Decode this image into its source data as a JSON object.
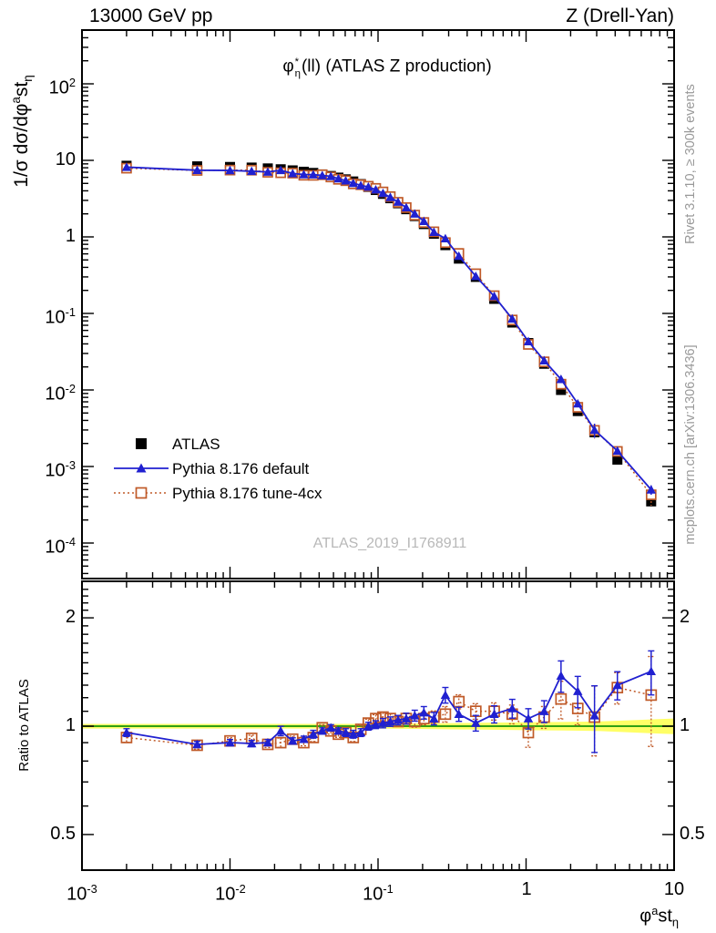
{
  "header": {
    "left": "13000 GeV pp",
    "right": "Z (Drell-Yan)"
  },
  "panel_title": {
    "phi": "φ",
    "sup": "*",
    "sub": "η",
    "rest": "(ll) (ATLAS Z production)"
  },
  "credits": {
    "right_top": "Rivet 3.1.10, ≥ 300k events",
    "right_bottom": "mcplots.cern.ch [arXiv:1306.3436]",
    "watermark": "ATLAS_2019_I1768911"
  },
  "legend": [
    {
      "label": "ATLAS",
      "marker": "black-filled-square"
    },
    {
      "label": "Pythia 8.176 default",
      "marker": "blue-triangle-solid-line"
    },
    {
      "label": "Pythia 8.176 tune-4cx",
      "marker": "orange-open-square-dotted-line"
    }
  ],
  "axes": {
    "ylabel_main": {
      "prefix": "1/σ dσ/dφ",
      "sup": "a",
      "mid": "st",
      "sub": "η"
    },
    "ylabel_ratio": "Ratio to ATLAS",
    "xlabel": {
      "prefix": "φ",
      "sup": "a",
      "mid": "st",
      "sub": "η"
    },
    "x_ticks": [
      {
        "v": 0.001,
        "b": "10",
        "e": "-3"
      },
      {
        "v": 0.01,
        "b": "10",
        "e": "-2"
      },
      {
        "v": 0.1,
        "b": "10",
        "e": "-1"
      },
      {
        "v": 1,
        "b": "1",
        "e": ""
      },
      {
        "v": 10,
        "b": "10",
        "e": ""
      }
    ],
    "y_ticks_main": [
      {
        "v": 100,
        "b": "10",
        "e": "2"
      },
      {
        "v": 10,
        "b": "10",
        "e": ""
      },
      {
        "v": 1,
        "b": "1",
        "e": ""
      },
      {
        "v": 0.1,
        "b": "10",
        "e": "-1"
      },
      {
        "v": 0.01,
        "b": "10",
        "e": "-2"
      },
      {
        "v": 0.001,
        "b": "10",
        "e": "-3"
      },
      {
        "v": 0.0001,
        "b": "10",
        "e": "-4"
      }
    ],
    "y_ticks_ratio": [
      {
        "v": 2,
        "label": "2"
      },
      {
        "v": 1,
        "label": "1"
      },
      {
        "v": 0.5,
        "label": "0.5"
      }
    ]
  },
  "colors": {
    "data": "#000000",
    "pythia_default": "#2020d0",
    "pythia_4cx": "#c05a28",
    "band_yellow": "#ffff55",
    "band_green": "#00b300",
    "credits_gray": "#999999",
    "watermark_gray": "#b8b8b8"
  },
  "chart_data": {
    "type": "line",
    "title": "φ*η(ll) (ATLAS Z production)",
    "xlabel": "φ*η",
    "x_scale": "log",
    "x_range": [
      0.001,
      10
    ],
    "main_panel": {
      "ylabel": "1/σ dσ/dφ*η",
      "y_scale": "log",
      "y_range": [
        3.5e-05,
        500
      ]
    },
    "ratio_panel": {
      "ylabel": "Ratio to ATLAS",
      "y_scale": "log",
      "y_range": [
        0.4,
        2.5
      ],
      "reference_line": 1.0
    },
    "legend_position": "middle-left",
    "x": [
      0.002,
      0.006,
      0.01,
      0.014,
      0.018,
      0.022,
      0.0265,
      0.0315,
      0.0365,
      0.042,
      0.048,
      0.054,
      0.0605,
      0.068,
      0.0765,
      0.086,
      0.0965,
      0.108,
      0.121,
      0.1365,
      0.155,
      0.177,
      0.204,
      0.2385,
      0.285,
      0.3515,
      0.4575,
      0.6095,
      0.8065,
      1.036,
      1.325,
      1.722,
      2.235,
      2.9,
      4.139,
      7.0
    ],
    "series": [
      {
        "name": "ATLAS",
        "role": "reference-data",
        "y": [
          8.5,
          8.35,
          8.2,
          8.05,
          7.85,
          7.65,
          7.4,
          7.1,
          6.85,
          6.55,
          6.25,
          5.95,
          5.65,
          5.3,
          4.9,
          4.5,
          4.1,
          3.65,
          3.2,
          2.75,
          2.3,
          1.87,
          1.47,
          1.1,
          0.78,
          0.52,
          0.3,
          0.155,
          0.076,
          0.041,
          0.022,
          0.01,
          0.0053,
          0.0028,
          0.00123,
          0.00035
        ]
      },
      {
        "name": "Pythia 8.176 default",
        "role": "mc-prediction",
        "ratio_to_data": [
          0.96,
          0.89,
          0.9,
          0.895,
          0.9,
          0.97,
          0.91,
          0.92,
          0.95,
          0.97,
          0.99,
          0.97,
          0.96,
          0.95,
          0.96,
          1.0,
          1.01,
          1.02,
          1.03,
          1.04,
          1.05,
          1.07,
          1.09,
          1.05,
          1.22,
          1.08,
          1.02,
          1.08,
          1.12,
          1.05,
          1.1,
          1.38,
          1.25,
          1.07,
          1.3,
          1.42
        ],
        "ratio_err": [
          0.025,
          0.02,
          0.02,
          0.02,
          0.02,
          0.03,
          0.02,
          0.02,
          0.025,
          0.02,
          0.02,
          0.02,
          0.025,
          0.025,
          0.025,
          0.025,
          0.025,
          0.03,
          0.03,
          0.03,
          0.035,
          0.035,
          0.04,
          0.04,
          0.05,
          0.045,
          0.05,
          0.055,
          0.06,
          0.065,
          0.07,
          0.1,
          0.1,
          0.21,
          0.09,
          0.14
        ]
      },
      {
        "name": "Pythia 8.176 tune-4cx",
        "role": "mc-prediction",
        "ratio_to_data": [
          0.93,
          0.885,
          0.91,
          0.925,
          0.89,
          0.9,
          0.92,
          0.9,
          0.93,
          0.99,
          0.97,
          0.95,
          0.96,
          0.93,
          0.98,
          1.02,
          1.05,
          1.06,
          1.05,
          1.03,
          1.05,
          1.03,
          1.05,
          1.06,
          1.08,
          1.17,
          1.1,
          1.1,
          1.08,
          0.96,
          1.06,
          1.19,
          1.12,
          1.06,
          1.28,
          1.22
        ],
        "ratio_err": [
          0.03,
          0.025,
          0.02,
          0.02,
          0.02,
          0.03,
          0.02,
          0.02,
          0.025,
          0.02,
          0.02,
          0.02,
          0.025,
          0.025,
          0.025,
          0.025,
          0.025,
          0.03,
          0.03,
          0.03,
          0.035,
          0.035,
          0.04,
          0.04,
          0.05,
          0.045,
          0.05,
          0.055,
          0.06,
          0.09,
          0.07,
          0.12,
          0.1,
          0.22,
          0.1,
          0.28
        ]
      }
    ],
    "data_uncertainty_band": {
      "color": "yellow-with-green-center",
      "fractional_halfwidth_vs_x": [
        [
          0.001,
          0.015
        ],
        [
          0.1,
          0.015
        ],
        [
          1,
          0.025
        ],
        [
          3,
          0.03
        ],
        [
          10,
          0.05
        ]
      ]
    }
  }
}
